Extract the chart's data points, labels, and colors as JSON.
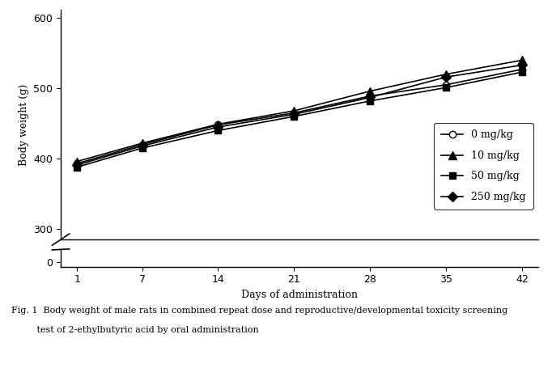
{
  "x": [
    1,
    7,
    14,
    21,
    28,
    35,
    42
  ],
  "series": {
    "0 mg/kg": {
      "y": [
        393,
        420,
        448,
        465,
        489,
        505,
        527
      ],
      "marker": "o",
      "fillstyle": "none",
      "linewidth": 1.2,
      "markersize": 6
    },
    "10 mg/kg": {
      "y": [
        396,
        422,
        449,
        468,
        496,
        520,
        540
      ],
      "marker": "^",
      "fillstyle": "full",
      "linewidth": 1.2,
      "markersize": 7
    },
    "50 mg/kg": {
      "y": [
        388,
        415,
        440,
        460,
        482,
        501,
        523
      ],
      "marker": "s",
      "fillstyle": "full",
      "linewidth": 1.2,
      "markersize": 6
    },
    "250 mg/kg": {
      "y": [
        391,
        418,
        445,
        463,
        487,
        516,
        533
      ],
      "marker": "D",
      "fillstyle": "full",
      "linewidth": 1.2,
      "markersize": 6
    }
  },
  "xlabel": "Days of administration",
  "ylabel": "Body weight (g)",
  "yticks_upper": [
    300,
    400,
    500,
    600
  ],
  "ylim_upper": [
    285,
    612
  ],
  "xticks": [
    1,
    7,
    14,
    21,
    28,
    35,
    42
  ],
  "legend_order": [
    "0 mg/kg",
    "10 mg/kg",
    "50 mg/kg",
    "250 mg/kg"
  ],
  "caption_line1": "Fig. 1  Body weight of male rats in combined repeat dose and reproductive/developmental toxicity screening",
  "caption_line2": "         test of 2-ethylbutyric acid by oral administration",
  "background_color": "#ffffff",
  "color": "#000000"
}
